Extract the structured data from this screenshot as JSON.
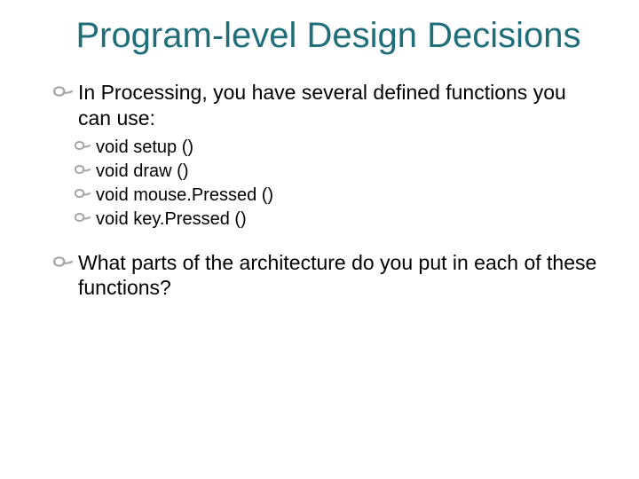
{
  "colors": {
    "title": "#1f6e7a",
    "body": "#000000",
    "marker": "#a6a6a6",
    "background": "#ffffff"
  },
  "title": "Program-level Design Decisions",
  "bullets": {
    "b1": "In Processing, you have several defined functions you can use:",
    "s1": "void setup ()",
    "s2": "void draw ()",
    "s3": "void mouse.Pressed ()",
    "s4": "void key.Pressed ()",
    "b2": "What parts of the architecture do you put in each of these functions?"
  },
  "marker": {
    "level1": {
      "width": 22,
      "height": 14,
      "stroke_width": 2.2
    },
    "level2": {
      "width": 18,
      "height": 12,
      "stroke_width": 2
    }
  }
}
